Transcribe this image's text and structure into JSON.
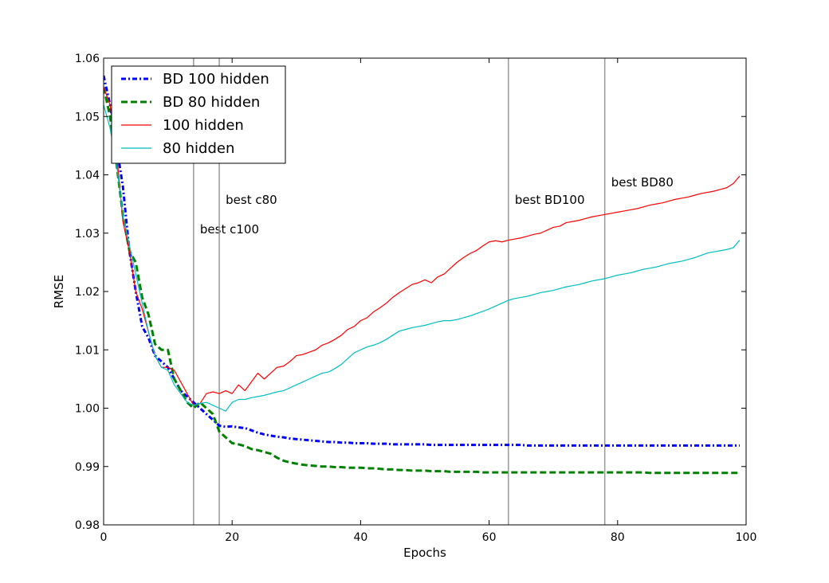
{
  "chart_data": {
    "type": "line",
    "title": "",
    "xlabel": "Epochs",
    "ylabel": "RMSE",
    "xlim": [
      0,
      100
    ],
    "ylim": [
      0.98,
      1.06
    ],
    "xticks": [
      0,
      20,
      40,
      60,
      80,
      100
    ],
    "yticks": [
      0.98,
      0.99,
      1.0,
      1.01,
      1.02,
      1.03,
      1.04,
      1.05,
      1.06
    ],
    "xtick_labels": [
      "0",
      "20",
      "40",
      "60",
      "80",
      "100"
    ],
    "ytick_labels": [
      "0.98",
      "0.99",
      "1.00",
      "1.01",
      "1.02",
      "1.03",
      "1.04",
      "1.05",
      "1.06"
    ],
    "grid": false,
    "legend_position": "top-left",
    "vlines": [
      {
        "x": 14,
        "label": "best c100",
        "label_x": 15,
        "label_y": 1.03
      },
      {
        "x": 18,
        "label": "best c80",
        "label_x": 19,
        "label_y": 1.035
      },
      {
        "x": 63,
        "label": "best BD100",
        "label_x": 64,
        "label_y": 1.035
      },
      {
        "x": 78,
        "label": "best BD80",
        "label_x": 79,
        "label_y": 1.038
      }
    ],
    "series": [
      {
        "name": "BD 100 hidden",
        "color": "#0000ff",
        "style": "dashdot",
        "values": [
          1.057,
          1.052,
          1.045,
          1.038,
          1.027,
          1.02,
          1.014,
          1.012,
          1.009,
          1.008,
          1.007,
          1.005,
          1.003,
          1.002,
          1.001,
          1.0,
          0.999,
          0.998,
          0.997,
          0.9968,
          0.9969,
          0.9967,
          0.9966,
          0.9962,
          0.9958,
          0.9955,
          0.9953,
          0.9951,
          0.995,
          0.9948,
          0.9947,
          0.9946,
          0.9945,
          0.9944,
          0.9943,
          0.9942,
          0.9942,
          0.9941,
          0.9941,
          0.994,
          0.994,
          0.994,
          0.9939,
          0.9939,
          0.9939,
          0.9938,
          0.9938,
          0.9938,
          0.9938,
          0.9938,
          0.9938,
          0.9937,
          0.9937,
          0.9937,
          0.9937,
          0.9937,
          0.9937,
          0.9937,
          0.9937,
          0.9937,
          0.9937,
          0.9937,
          0.9937,
          0.9937,
          0.9937,
          0.9937,
          0.9936,
          0.9936,
          0.9936,
          0.9936,
          0.9936,
          0.9936,
          0.9936,
          0.9936,
          0.9936,
          0.9936,
          0.9936,
          0.9936,
          0.9936,
          0.9936,
          0.9936,
          0.9936,
          0.9936,
          0.9936,
          0.9936,
          0.9936,
          0.9936,
          0.9936,
          0.9936,
          0.9936,
          0.9936,
          0.9936,
          0.9936,
          0.9936,
          0.9936,
          0.9936,
          0.9936,
          0.9936,
          0.9936,
          0.9936
        ]
      },
      {
        "name": "BD 80 hidden",
        "color": "#008000",
        "style": "dashed",
        "values": [
          1.055,
          1.05,
          1.042,
          1.033,
          1.027,
          1.025,
          1.019,
          1.016,
          1.011,
          1.01,
          1.01,
          1.005,
          1.003,
          1.001,
          1.0,
          1.001,
          1.0,
          0.999,
          0.996,
          0.995,
          0.994,
          0.9938,
          0.9935,
          0.993,
          0.9928,
          0.9925,
          0.9922,
          0.9915,
          0.991,
          0.9907,
          0.9905,
          0.9903,
          0.9902,
          0.9901,
          0.99,
          0.99,
          0.9899,
          0.9899,
          0.9898,
          0.9898,
          0.9898,
          0.9897,
          0.9897,
          0.9896,
          0.9895,
          0.9895,
          0.9894,
          0.9894,
          0.9893,
          0.9893,
          0.9893,
          0.9892,
          0.9892,
          0.9892,
          0.9891,
          0.9891,
          0.9891,
          0.9891,
          0.9891,
          0.989,
          0.989,
          0.989,
          0.989,
          0.989,
          0.989,
          0.989,
          0.989,
          0.989,
          0.989,
          0.989,
          0.989,
          0.989,
          0.989,
          0.989,
          0.989,
          0.989,
          0.989,
          0.989,
          0.989,
          0.989,
          0.989,
          0.989,
          0.989,
          0.989,
          0.989,
          0.9889,
          0.9889,
          0.9889,
          0.9889,
          0.9889,
          0.9889,
          0.9889,
          0.9889,
          0.9889,
          0.9889,
          0.9889,
          0.9889,
          0.9889,
          0.9889,
          0.9889
        ]
      },
      {
        "name": "100 hidden",
        "color": "#ff0000",
        "style": "solid",
        "values": [
          1.055,
          1.052,
          1.044,
          1.032,
          1.027,
          1.02,
          1.017,
          1.013,
          1.009,
          1.007,
          1.007,
          1.0065,
          1.0045,
          1.0025,
          1.0005,
          1.0008,
          1.0025,
          1.0028,
          1.0025,
          1.003,
          1.0025,
          1.004,
          1.003,
          1.0045,
          1.006,
          1.005,
          1.006,
          1.007,
          1.0072,
          1.008,
          1.009,
          1.0092,
          1.0096,
          1.01,
          1.0108,
          1.0112,
          1.0118,
          1.0125,
          1.0135,
          1.014,
          1.015,
          1.0155,
          1.0165,
          1.0172,
          1.018,
          1.019,
          1.0198,
          1.0205,
          1.0212,
          1.0215,
          1.022,
          1.0215,
          1.0225,
          1.023,
          1.024,
          1.025,
          1.0258,
          1.0265,
          1.027,
          1.0278,
          1.0285,
          1.0287,
          1.0285,
          1.0288,
          1.029,
          1.0292,
          1.0295,
          1.0298,
          1.03,
          1.0305,
          1.031,
          1.0312,
          1.0318,
          1.032,
          1.0322,
          1.0325,
          1.0328,
          1.033,
          1.0332,
          1.0334,
          1.0336,
          1.0338,
          1.034,
          1.0342,
          1.0345,
          1.0348,
          1.035,
          1.0352,
          1.0355,
          1.0358,
          1.036,
          1.0362,
          1.0365,
          1.0368,
          1.037,
          1.0372,
          1.0375,
          1.0378,
          1.0385,
          1.0398
        ]
      },
      {
        "name": "80 hidden",
        "color": "#00bfbf",
        "style": "solid",
        "values": [
          1.052,
          1.048,
          1.042,
          1.033,
          1.028,
          1.023,
          1.018,
          1.013,
          1.009,
          1.007,
          1.0065,
          1.004,
          1.0025,
          1.001,
          1.0005,
          1.0008,
          1.001,
          1.0005,
          1.0,
          0.9995,
          1.001,
          1.0015,
          1.0015,
          1.0018,
          1.002,
          1.0022,
          1.0025,
          1.0028,
          1.003,
          1.0035,
          1.004,
          1.0045,
          1.005,
          1.0055,
          1.006,
          1.0062,
          1.0068,
          1.0075,
          1.0085,
          1.0095,
          1.01,
          1.0105,
          1.0108,
          1.0112,
          1.0118,
          1.0125,
          1.0132,
          1.0135,
          1.0138,
          1.014,
          1.0142,
          1.0145,
          1.0148,
          1.015,
          1.015,
          1.0152,
          1.0155,
          1.0158,
          1.0162,
          1.0166,
          1.017,
          1.0175,
          1.018,
          1.0185,
          1.0188,
          1.019,
          1.0192,
          1.0195,
          1.0198,
          1.02,
          1.0202,
          1.0205,
          1.0208,
          1.021,
          1.0212,
          1.0215,
          1.0218,
          1.022,
          1.0222,
          1.0225,
          1.0228,
          1.023,
          1.0232,
          1.0235,
          1.0238,
          1.024,
          1.0242,
          1.0245,
          1.0248,
          1.025,
          1.0252,
          1.0255,
          1.0258,
          1.0262,
          1.0266,
          1.0268,
          1.027,
          1.0272,
          1.0275,
          1.0288
        ]
      }
    ]
  }
}
